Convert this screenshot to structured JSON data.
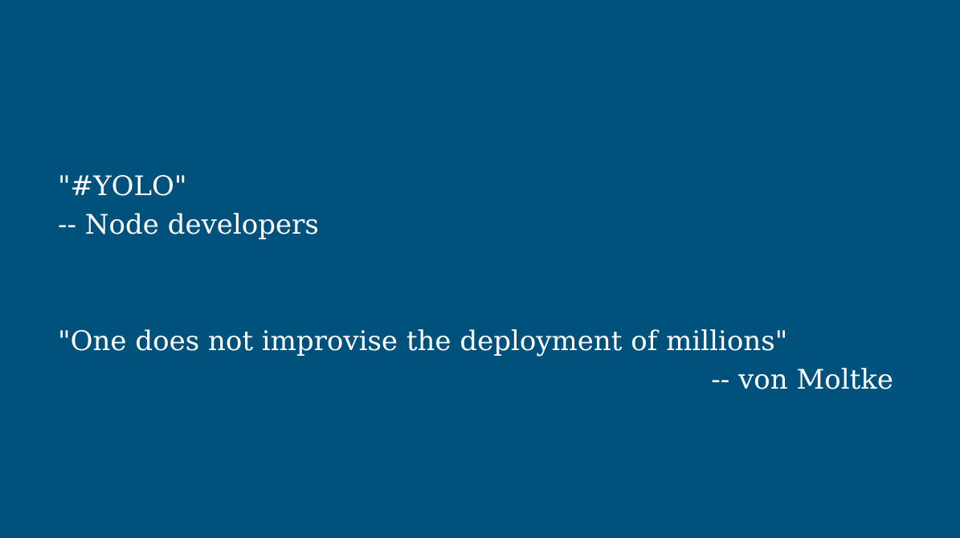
{
  "slide": {
    "background_color": "#00527d",
    "text_color": "#ffffff",
    "quotes": [
      {
        "text": "\"#YOLO\"",
        "attribution": "-- Node developers"
      },
      {
        "text": "\"One does not improvise the deployment of millions\"",
        "attribution": "-- von Moltke"
      }
    ]
  }
}
